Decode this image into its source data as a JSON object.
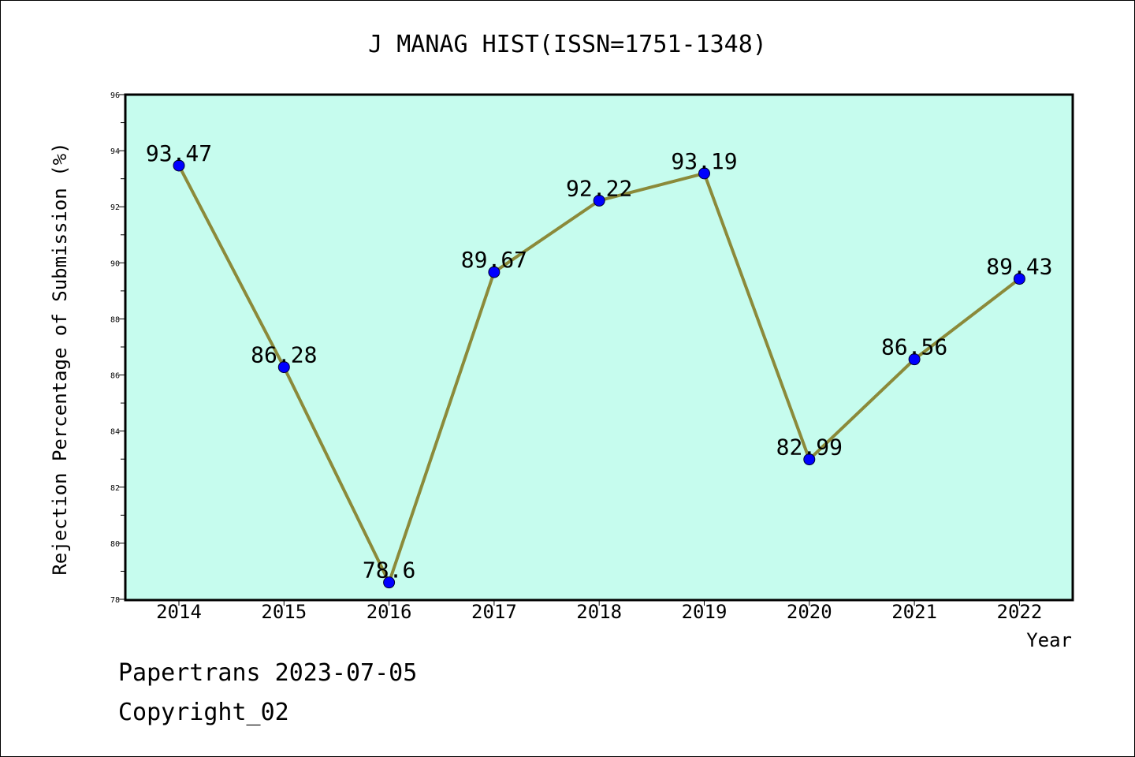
{
  "chart_data": {
    "type": "line",
    "title": "J MANAG HIST(ISSN=1751-1348)",
    "xlabel": "Year",
    "ylabel": "Rejection Percentage of Submission (%)",
    "categories": [
      "2014",
      "2015",
      "2016",
      "2017",
      "2018",
      "2019",
      "2020",
      "2021",
      "2022"
    ],
    "values": [
      93.47,
      86.28,
      78.6,
      89.67,
      92.22,
      93.19,
      82.99,
      86.56,
      89.43
    ],
    "data_labels": [
      "93.47",
      "86.28",
      "78.6",
      "89.67",
      "92.22",
      "93.19",
      "82.99",
      "86.56",
      "89.43"
    ],
    "ylim": [
      78,
      96
    ],
    "yticks": [
      78,
      80,
      82,
      84,
      86,
      88,
      90,
      92,
      94,
      96
    ],
    "grid": false,
    "colors": {
      "plot_background": "#c6fcee",
      "line": "#8b8a3a",
      "marker": "#0000ff"
    }
  },
  "footer": {
    "line1": "Papertrans 2023-07-05",
    "line2": "Copyright_02"
  }
}
